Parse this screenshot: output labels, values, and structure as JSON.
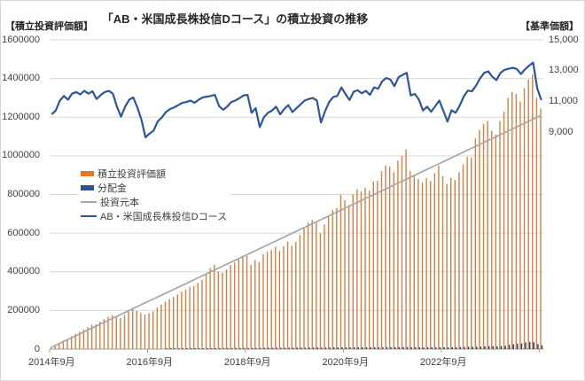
{
  "header": {
    "title": "「AB・米国成長株投信Dコース」の積立投資の推移",
    "left_axis_title": "【積立投資評価額】",
    "right_axis_title": "【基準価額】"
  },
  "colors": {
    "bar_eval": "#D08045",
    "bar_eval_legend": "#E2762D",
    "bar_div": "#2A3F66",
    "bar_div_legend": "#2E5394",
    "line_principal": "#A6A6A6",
    "line_nav": "#2F5597",
    "grid": "#D9D9D9",
    "axis": "#9E9E9E",
    "text": "#404040"
  },
  "chart_data": {
    "type": "bar",
    "subtype": "combo-monthly",
    "start_month": "2014-09",
    "end_month": "2024-09",
    "frequency": "monthly",
    "title": "「AB・米国成長株投信Dコース」の積立投資の推移",
    "x_tick_labels": [
      "2014年9月",
      "2016年9月",
      "2018年9月",
      "2020年9月",
      "2022年9月"
    ],
    "x_tick_indices": [
      0,
      24,
      48,
      72,
      96
    ],
    "left_axis": {
      "title": "【積立投資評価額】",
      "min": 0,
      "max": 1600000,
      "step": 200000,
      "tick_labels": [
        "0",
        "200000",
        "400000",
        "600000",
        "800000",
        "1000000",
        "1200000",
        "1400000",
        "1600000"
      ]
    },
    "right_axis": {
      "title": "【基準価額】",
      "tick_values": [
        9000,
        11000,
        13000,
        15000
      ],
      "tick_labels": [
        "9,000",
        "11,000",
        "13,000",
        "15,000"
      ],
      "pixels_per_step": "aligned to top: 15000 at plot top, 2000 per 34.7px"
    },
    "legend_position": "inside-left",
    "series": [
      {
        "name": "積立投資評価額",
        "type": "bar",
        "axis": "left",
        "values": [
          10000,
          21000,
          32000,
          44000,
          54000,
          67000,
          79000,
          90000,
          102000,
          113000,
          126000,
          128000,
          141000,
          155000,
          168000,
          175000,
          168000,
          160000,
          178000,
          194000,
          205000,
          198000,
          186000,
          178000,
          185000,
          196000,
          215000,
          230000,
          245000,
          258000,
          270000,
          283000,
          297000,
          308000,
          322000,
          326000,
          342000,
          358000,
          390000,
          420000,
          437000,
          402000,
          395000,
          412000,
          435000,
          448000,
          463000,
          478000,
          483000,
          437000,
          460000,
          450000,
          492000,
          505000,
          512000,
          530000,
          508000,
          532000,
          556000,
          535000,
          556000,
          590000,
          625000,
          655000,
          668000,
          655000,
          600000,
          645000,
          690000,
          720000,
          730000,
          798000,
          770000,
          745000,
          800000,
          826000,
          815000,
          835000,
          820000,
          868000,
          870000,
          920000,
          950000,
          945000,
          915000,
          975000,
          1000000,
          1033000,
          920000,
          900000,
          880000,
          862000,
          885000,
          870000,
          910000,
          950000,
          895000,
          855000,
          885000,
          875000,
          915000,
          955000,
          995000,
          990000,
          1090000,
          1135000,
          1165000,
          1180000,
          1130000,
          1110000,
          1180000,
          1230000,
          1300000,
          1330000,
          1320000,
          1280000,
          1350000,
          1395000,
          1420000,
          1300000,
          1245000
        ]
      },
      {
        "name": "分配金",
        "type": "bar",
        "axis": "left",
        "values": [
          0,
          0,
          0,
          0,
          0,
          0,
          0,
          0,
          0,
          0,
          0,
          0,
          0,
          0,
          0,
          0,
          0,
          0,
          0,
          0,
          0,
          0,
          0,
          0,
          0,
          0,
          0,
          0,
          4200,
          4500,
          4300,
          4600,
          4400,
          4700,
          4500,
          4800,
          4600,
          4700,
          4800,
          5000,
          5000,
          5200,
          5100,
          5300,
          5200,
          5400,
          5300,
          5500,
          5400,
          5600,
          5500,
          5700,
          6500,
          6600,
          6700,
          6800,
          6600,
          6900,
          7000,
          6800,
          7100,
          7300,
          7500,
          7800,
          8000,
          8200,
          7800,
          8000,
          8400,
          8600,
          8800,
          9200,
          9000,
          8800,
          9300,
          9500,
          9200,
          9400,
          9300,
          9700,
          9600,
          10000,
          10300,
          10200,
          9900,
          10400,
          10600,
          10800,
          9800,
          9900,
          9600,
          9000,
          9300,
          9100,
          9400,
          9700,
          9200,
          8800,
          9400,
          9300,
          10500,
          11200,
          11800,
          11900,
          12600,
          13500,
          14500,
          15200,
          14800,
          14500,
          15800,
          17500,
          22000,
          25000,
          28000,
          30000,
          34000,
          37000,
          36000,
          26000,
          20000
        ]
      },
      {
        "name": "投資元本",
        "type": "line",
        "axis": "left",
        "monthly_contribution": 10000,
        "final_value": 1210000
      },
      {
        "name": "AB・米国成長株投信Dコース",
        "type": "line",
        "axis": "right",
        "values": [
          10150,
          10400,
          11050,
          11350,
          11100,
          11500,
          11600,
          11450,
          11680,
          11500,
          11650,
          11150,
          11400,
          11600,
          11680,
          11500,
          10650,
          10000,
          10650,
          11100,
          11250,
          10600,
          9800,
          8650,
          8900,
          9100,
          9700,
          9950,
          10300,
          10500,
          10600,
          10750,
          10900,
          10950,
          11050,
          10900,
          11100,
          11250,
          11300,
          11350,
          11420,
          10700,
          10450,
          10650,
          10950,
          11050,
          11200,
          11380,
          11420,
          10250,
          10550,
          9320,
          9950,
          10250,
          10400,
          10650,
          10150,
          10500,
          10750,
          10300,
          10550,
          10800,
          11050,
          11150,
          11220,
          11050,
          9620,
          10350,
          10950,
          11280,
          11350,
          11900,
          11480,
          11080,
          11620,
          11720,
          11520,
          11680,
          11420,
          11900,
          11820,
          12300,
          12520,
          12420,
          11980,
          12560,
          12720,
          12850,
          11380,
          11480,
          11120,
          10400,
          10650,
          10320,
          10680,
          11050,
          10380,
          9680,
          10420,
          10250,
          10720,
          11320,
          11700,
          11650,
          12020,
          12500,
          12850,
          12950,
          12600,
          12380,
          12850,
          13050,
          13120,
          13180,
          13100,
          12780,
          13080,
          13320,
          13520,
          11850,
          11080
        ]
      }
    ]
  }
}
